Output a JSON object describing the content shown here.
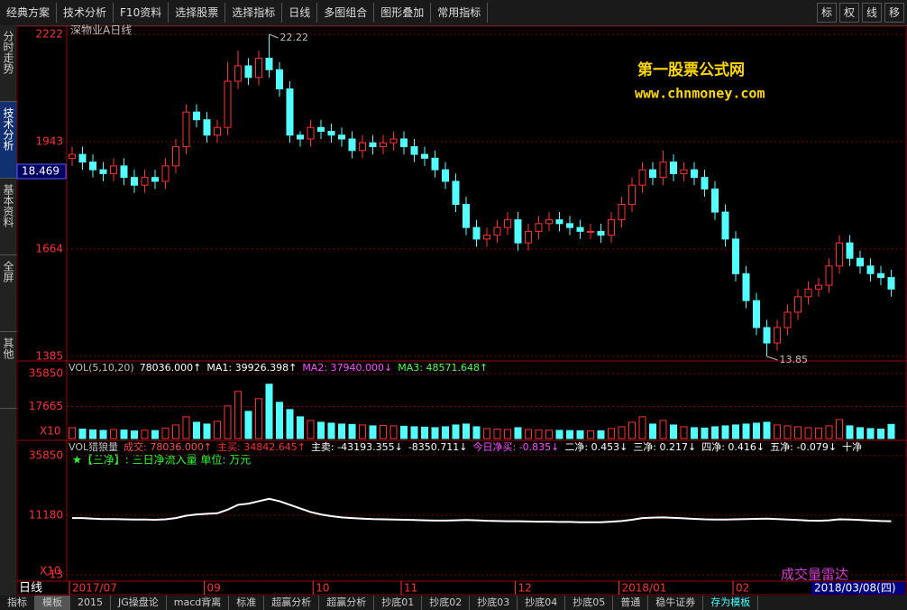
{
  "toolbar": {
    "items": [
      "经典方案",
      "技术分析",
      "F10资料",
      "选择股票",
      "选择指标",
      "日线",
      "多图组合",
      "图形叠加",
      "常用指标"
    ],
    "right": [
      "标",
      "权",
      "线",
      "移"
    ]
  },
  "sidebar": {
    "tabs": [
      "分时走势",
      "技术分析",
      "基本资料",
      "全屏",
      "其他"
    ],
    "price_box": "18.469"
  },
  "watermark": {
    "line1": "第一股票公式网",
    "line2": "www.chnmoney.com"
  },
  "chart_data": {
    "type": "candlestick",
    "title": "深物业A日线",
    "ylim": [
      13.85,
      22.22
    ],
    "yticks": [
      {
        "value": 22.22,
        "label": "2222"
      },
      {
        "value": 19.43,
        "label": "1943"
      },
      {
        "value": 16.64,
        "label": "1664"
      },
      {
        "value": 13.85,
        "label": "1385"
      }
    ],
    "high_label": "22.22",
    "low_label": "13.85",
    "up_color": "#ff3232",
    "down_color": "#54ffff",
    "candles": [
      [
        19.0,
        19.3,
        18.8,
        19.1
      ],
      [
        19.1,
        19.3,
        18.7,
        18.9
      ],
      [
        18.9,
        19.1,
        18.5,
        18.7
      ],
      [
        18.7,
        18.9,
        18.4,
        18.6
      ],
      [
        18.6,
        19.0,
        18.4,
        18.8
      ],
      [
        18.8,
        19.0,
        18.3,
        18.5
      ],
      [
        18.5,
        18.7,
        18.1,
        18.3
      ],
      [
        18.3,
        18.7,
        18.1,
        18.5
      ],
      [
        18.5,
        18.7,
        18.2,
        18.4
      ],
      [
        18.4,
        19.0,
        18.2,
        18.8
      ],
      [
        18.8,
        19.5,
        18.6,
        19.3
      ],
      [
        19.3,
        20.4,
        19.1,
        20.2
      ],
      [
        20.2,
        20.4,
        19.8,
        20.0
      ],
      [
        20.0,
        20.2,
        19.4,
        19.6
      ],
      [
        19.6,
        20.0,
        19.4,
        19.8
      ],
      [
        19.8,
        21.5,
        19.6,
        21.0
      ],
      [
        21.0,
        21.8,
        20.8,
        21.4
      ],
      [
        21.4,
        21.6,
        20.9,
        21.1
      ],
      [
        21.1,
        21.8,
        20.9,
        21.6
      ],
      [
        21.6,
        22.22,
        21.1,
        21.3
      ],
      [
        21.3,
        21.5,
        20.6,
        20.8
      ],
      [
        20.8,
        21.0,
        19.4,
        19.6
      ],
      [
        19.6,
        19.7,
        19.3,
        19.5
      ],
      [
        19.5,
        20.0,
        19.3,
        19.8
      ],
      [
        19.8,
        20.0,
        19.5,
        19.7
      ],
      [
        19.7,
        19.9,
        19.4,
        19.6
      ],
      [
        19.6,
        19.8,
        19.3,
        19.5
      ],
      [
        19.5,
        19.7,
        19.0,
        19.2
      ],
      [
        19.2,
        19.6,
        19.0,
        19.4
      ],
      [
        19.4,
        19.6,
        19.1,
        19.3
      ],
      [
        19.3,
        19.6,
        19.1,
        19.4
      ],
      [
        19.4,
        19.7,
        19.2,
        19.5
      ],
      [
        19.5,
        19.7,
        19.1,
        19.3
      ],
      [
        19.3,
        19.5,
        18.9,
        19.1
      ],
      [
        19.1,
        19.3,
        18.8,
        19.0
      ],
      [
        19.0,
        19.2,
        18.5,
        18.7
      ],
      [
        18.7,
        18.9,
        18.2,
        18.4
      ],
      [
        18.4,
        18.6,
        17.6,
        17.8
      ],
      [
        17.8,
        18.0,
        17.0,
        17.2
      ],
      [
        17.2,
        17.4,
        16.7,
        16.9
      ],
      [
        16.9,
        17.2,
        16.7,
        17.0
      ],
      [
        17.0,
        17.4,
        16.8,
        17.2
      ],
      [
        17.2,
        17.6,
        17.0,
        17.4
      ],
      [
        17.4,
        17.6,
        16.6,
        16.8
      ],
      [
        16.8,
        17.3,
        16.6,
        17.1
      ],
      [
        17.1,
        17.5,
        16.9,
        17.3
      ],
      [
        17.3,
        17.6,
        17.1,
        17.4
      ],
      [
        17.4,
        17.6,
        17.1,
        17.3
      ],
      [
        17.3,
        17.5,
        17.0,
        17.2
      ],
      [
        17.2,
        17.4,
        16.9,
        17.1
      ],
      [
        17.1,
        17.3,
        16.9,
        17.1
      ],
      [
        17.1,
        17.3,
        16.8,
        17.0
      ],
      [
        17.0,
        17.6,
        16.8,
        17.4
      ],
      [
        17.4,
        18.0,
        17.2,
        17.8
      ],
      [
        17.8,
        18.5,
        17.6,
        18.3
      ],
      [
        18.3,
        18.9,
        18.1,
        18.7
      ],
      [
        18.7,
        18.9,
        18.3,
        18.5
      ],
      [
        18.5,
        19.2,
        18.3,
        18.9
      ],
      [
        18.9,
        19.1,
        18.4,
        18.6
      ],
      [
        18.6,
        18.9,
        18.4,
        18.7
      ],
      [
        18.7,
        18.9,
        18.3,
        18.5
      ],
      [
        18.5,
        18.7,
        18.0,
        18.2
      ],
      [
        18.2,
        18.4,
        17.4,
        17.6
      ],
      [
        17.6,
        17.8,
        16.7,
        16.9
      ],
      [
        16.9,
        17.1,
        15.8,
        16.0
      ],
      [
        16.0,
        16.2,
        15.1,
        15.3
      ],
      [
        15.3,
        15.5,
        14.4,
        14.6
      ],
      [
        14.6,
        14.8,
        13.85,
        14.2
      ],
      [
        14.2,
        14.8,
        14.0,
        14.6
      ],
      [
        14.6,
        15.2,
        14.4,
        15.0
      ],
      [
        15.0,
        15.6,
        14.8,
        15.4
      ],
      [
        15.4,
        15.8,
        15.2,
        15.6
      ],
      [
        15.6,
        15.9,
        15.4,
        15.7
      ],
      [
        15.7,
        16.4,
        15.5,
        16.2
      ],
      [
        16.2,
        17.0,
        16.0,
        16.8
      ],
      [
        16.8,
        17.0,
        16.2,
        16.4
      ],
      [
        16.4,
        16.6,
        16.0,
        16.2
      ],
      [
        16.2,
        16.4,
        15.8,
        16.0
      ],
      [
        16.0,
        16.2,
        15.7,
        15.9
      ],
      [
        15.9,
        16.1,
        15.4,
        15.6
      ]
    ],
    "volume": {
      "header": [
        {
          "text": "VOL(5,10,20)",
          "color": "#c0c0c0"
        },
        {
          "text": "78036.000↑",
          "color": "#ffffff"
        },
        {
          "text": "MA1: 39926.398↑",
          "color": "#ffffff"
        },
        {
          "text": "MA2: 37940.000↓",
          "color": "#ff50ff"
        },
        {
          "text": "MA3: 48571.648↑",
          "color": "#50ff50"
        }
      ],
      "ylim": [
        0,
        35850
      ],
      "yticks": [
        35850,
        17665
      ],
      "unit": "X10",
      "values": [
        6000,
        5200,
        4800,
        4500,
        5000,
        4700,
        4200,
        4600,
        4400,
        5800,
        7500,
        12000,
        9000,
        8000,
        9500,
        18000,
        26000,
        15000,
        22000,
        30000,
        20000,
        16000,
        12000,
        10000,
        9000,
        8500,
        8000,
        7800,
        7500,
        7000,
        7200,
        7000,
        6800,
        6500,
        6300,
        6000,
        6500,
        7500,
        8000,
        6500,
        5500,
        5200,
        5000,
        6000,
        5000,
        4800,
        4600,
        4500,
        4400,
        4300,
        4200,
        4300,
        5500,
        6500,
        9000,
        12000,
        8000,
        10000,
        7500,
        6500,
        6000,
        5800,
        6500,
        7000,
        7500,
        8000,
        8500,
        9000,
        7500,
        7000,
        6500,
        6000,
        5800,
        7000,
        10500,
        7000,
        6000,
        5500,
        5200,
        7800
      ]
    },
    "radar": {
      "header": [
        {
          "text": "VOL猎狼量",
          "color": "#c0c0c0"
        },
        {
          "text": "成交: 78036.000↑",
          "color": "#ff5050"
        },
        {
          "text": "主买: 34842.645↑",
          "color": "#ff3030"
        },
        {
          "text": "主卖: -43193.355↓",
          "color": "#ffffff"
        },
        {
          "text": "-8350.711↓",
          "color": "#ffffff"
        },
        {
          "text": "今日净买: -0.835↓",
          "color": "#ff50ff"
        },
        {
          "text": "二净: 0.453↓",
          "color": "#ffffff"
        },
        {
          "text": "三净: 0.217↓",
          "color": "#ffffff"
        },
        {
          "text": "四净: 0.416↓",
          "color": "#ffffff"
        },
        {
          "text": "五净: -0.079↓",
          "color": "#ffffff"
        },
        {
          "text": "十净",
          "color": "#ffffff"
        }
      ],
      "subtitle": "★【三净】: 三日净流入量 单位: 万元",
      "ylim": [
        -13490,
        35850
      ],
      "yticks": [
        35850,
        11180,
        {
          "value": -13490,
          "label": "-13"
        }
      ],
      "unit": "X10",
      "line_color": "#ffffff",
      "values": [
        10000,
        10000,
        9800,
        9600,
        9600,
        9500,
        9400,
        9400,
        9300,
        9500,
        10000,
        11000,
        11500,
        11800,
        12000,
        13500,
        15500,
        16000,
        17000,
        18000,
        17000,
        15500,
        14000,
        12500,
        11500,
        10800,
        10300,
        10000,
        9800,
        9600,
        9500,
        9400,
        9300,
        9200,
        9100,
        9000,
        9000,
        9100,
        9200,
        9100,
        8900,
        8800,
        8700,
        8700,
        8600,
        8500,
        8500,
        8400,
        8400,
        8300,
        8300,
        8300,
        8500,
        8800,
        9300,
        10000,
        10200,
        10300,
        10100,
        9900,
        9700,
        9500,
        9400,
        9400,
        9500,
        9600,
        9700,
        9800,
        9600,
        9400,
        9200,
        9000,
        8900,
        9100,
        9500,
        9400,
        9200,
        9000,
        8800,
        8700
      ],
      "name": "成交量雷达"
    },
    "date_labels": [
      {
        "label": "2017/07",
        "index": 0
      },
      {
        "label": "09",
        "index": 13
      },
      {
        "label": "10",
        "index": 23.5
      },
      {
        "label": "11",
        "index": 32
      },
      {
        "label": "12",
        "index": 43
      },
      {
        "label": "2018/01",
        "index": 53
      },
      {
        "label": "02",
        "index": 64
      }
    ],
    "period": "日线",
    "date": "2018/03/08(四)"
  },
  "bottom_tabs": [
    "指标",
    "模板",
    "2015",
    "JG操盘论",
    "macd背离",
    "标准",
    "超赢分析",
    "超赢分析",
    "抄底01",
    "抄底02",
    "抄底03",
    "抄底04",
    "抄底05",
    "普通",
    "稳牛证券",
    "存为模板"
  ]
}
